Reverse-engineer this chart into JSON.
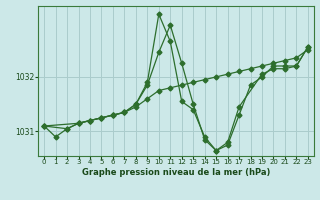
{
  "title": "Graphe pression niveau de la mer (hPa)",
  "bg_color": "#cce8e8",
  "grid_color": "#aacccc",
  "line_color": "#2d6e2d",
  "marker_color": "#2d6e2d",
  "ylim": [
    1030.55,
    1033.3
  ],
  "yticks": [
    1031,
    1032
  ],
  "xlim": [
    -0.5,
    23.5
  ],
  "xticks": [
    0,
    1,
    2,
    3,
    4,
    5,
    6,
    7,
    8,
    9,
    10,
    11,
    12,
    13,
    14,
    15,
    16,
    17,
    18,
    19,
    20,
    21,
    22,
    23
  ],
  "series1": {
    "x": [
      0,
      1,
      2,
      3,
      4,
      5,
      6,
      7,
      8,
      9,
      10,
      11,
      12,
      13,
      14,
      15,
      16,
      17,
      18,
      19,
      20,
      21,
      22,
      23
    ],
    "y": [
      1031.1,
      1030.9,
      1031.05,
      1031.15,
      1031.2,
      1031.25,
      1031.3,
      1031.35,
      1031.45,
      1031.6,
      1031.75,
      1031.8,
      1031.85,
      1031.9,
      1031.95,
      1032.0,
      1032.05,
      1032.1,
      1032.15,
      1032.2,
      1032.25,
      1032.3,
      1032.35,
      1032.5
    ]
  },
  "series2": {
    "x": [
      0,
      2,
      3,
      4,
      5,
      6,
      7,
      8,
      9,
      10,
      11,
      12,
      13,
      14,
      15,
      16,
      17,
      18,
      19,
      20,
      21,
      22,
      23
    ],
    "y": [
      1031.1,
      1031.05,
      1031.15,
      1031.2,
      1031.25,
      1031.3,
      1031.35,
      1031.5,
      1031.9,
      1033.15,
      1032.65,
      1031.55,
      1031.4,
      1030.9,
      1030.65,
      1030.75,
      1031.3,
      1031.85,
      1032.0,
      1032.2,
      1032.2,
      1032.2,
      1032.55
    ]
  },
  "series3": {
    "x": [
      0,
      3,
      4,
      5,
      6,
      7,
      8,
      9,
      10,
      11,
      12,
      13,
      14,
      15,
      16,
      17,
      19,
      20,
      21,
      22,
      23
    ],
    "y": [
      1031.1,
      1031.15,
      1031.2,
      1031.25,
      1031.3,
      1031.35,
      1031.5,
      1031.85,
      1032.45,
      1032.95,
      1032.25,
      1031.5,
      1030.85,
      1030.65,
      1030.8,
      1031.45,
      1032.05,
      1032.15,
      1032.15,
      1032.2,
      1032.55
    ]
  }
}
